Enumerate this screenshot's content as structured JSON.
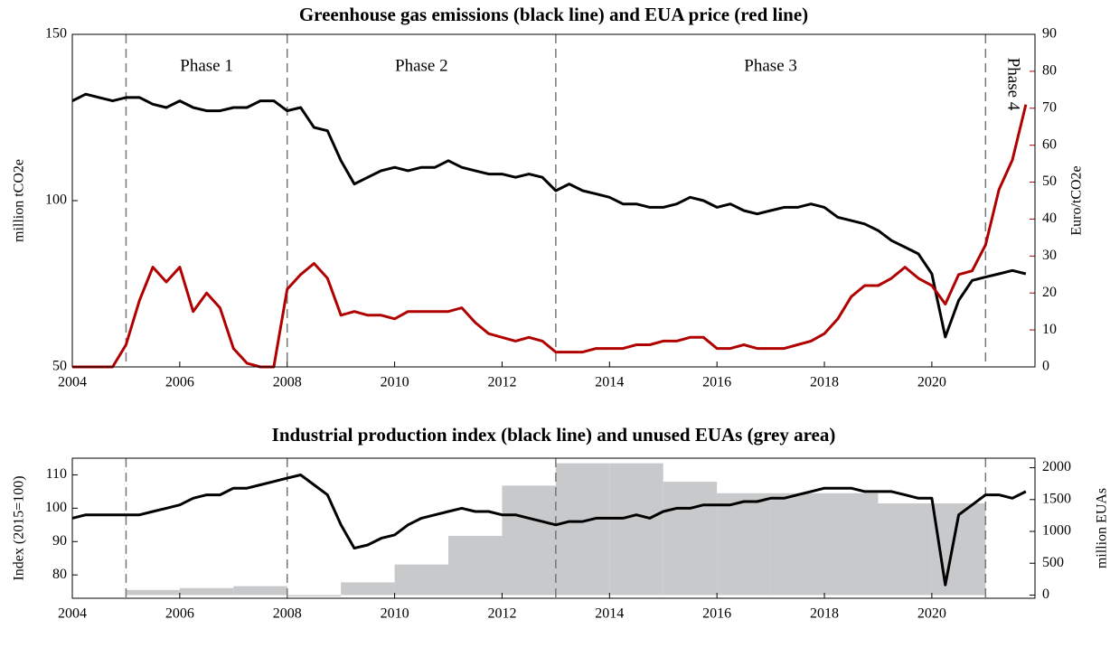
{
  "chart_data": [
    {
      "type": "line",
      "title": "Greenhouse gas emissions (black line) and EUA price (red line)",
      "ylabel": "million tCO2e",
      "y2label": "Euro/tCO2e",
      "xlim": [
        2004,
        2021.92
      ],
      "xticks": [
        2004,
        2006,
        2008,
        2010,
        2012,
        2014,
        2016,
        2018,
        2020
      ],
      "ylim": [
        50,
        150
      ],
      "yticks": [
        50,
        100,
        150
      ],
      "y2lim": [
        0,
        90
      ],
      "y2ticks": [
        0,
        10,
        20,
        30,
        40,
        50,
        60,
        70,
        80,
        90
      ],
      "phase_lines": [
        2005,
        2008,
        2013,
        2021
      ],
      "annotations": [
        {
          "text": "Phase 1",
          "x": 2006.5
        },
        {
          "text": "Phase 2",
          "x": 2010.5
        },
        {
          "text": "Phase 3",
          "x": 2017
        },
        {
          "text": "Phase 4",
          "x": 2021.5,
          "rotate": 90
        }
      ],
      "x": [
        2004,
        2004.25,
        2004.5,
        2004.75,
        2005,
        2005.25,
        2005.5,
        2005.75,
        2006,
        2006.25,
        2006.5,
        2006.75,
        2007,
        2007.25,
        2007.5,
        2007.75,
        2008,
        2008.25,
        2008.5,
        2008.75,
        2009,
        2009.25,
        2009.5,
        2009.75,
        2010,
        2010.25,
        2010.5,
        2010.75,
        2011,
        2011.25,
        2011.5,
        2011.75,
        2012,
        2012.25,
        2012.5,
        2012.75,
        2013,
        2013.25,
        2013.5,
        2013.75,
        2014,
        2014.25,
        2014.5,
        2014.75,
        2015,
        2015.25,
        2015.5,
        2015.75,
        2016,
        2016.25,
        2016.5,
        2016.75,
        2017,
        2017.25,
        2017.5,
        2017.75,
        2018,
        2018.25,
        2018.5,
        2018.75,
        2019,
        2019.25,
        2019.5,
        2019.75,
        2020,
        2020.25,
        2020.5,
        2020.75,
        2021,
        2021.25,
        2021.5,
        2021.75
      ],
      "series": [
        {
          "color": "#000000",
          "axis": "y",
          "values": [
            130,
            132,
            131,
            130,
            131,
            131,
            129,
            128,
            130,
            128,
            127,
            127,
            128,
            128,
            130,
            130,
            127,
            128,
            122,
            121,
            112,
            105,
            107,
            109,
            110,
            109,
            110,
            110,
            112,
            110,
            109,
            108,
            108,
            107,
            108,
            107,
            103,
            105,
            103,
            102,
            101,
            99,
            99,
            98,
            98,
            99,
            101,
            100,
            98,
            99,
            97,
            96,
            97,
            98,
            98,
            99,
            98,
            95,
            94,
            93,
            91,
            88,
            86,
            84,
            78,
            59,
            70,
            76,
            77,
            78,
            79,
            78
          ]
        },
        {
          "color": "#b00000",
          "axis": "y2",
          "values": [
            0,
            0,
            0,
            0,
            6,
            18,
            27,
            23,
            27,
            15,
            20,
            16,
            5,
            1,
            0,
            0,
            21,
            25,
            28,
            24,
            14,
            15,
            14,
            14,
            13,
            15,
            15,
            15,
            15,
            16,
            12,
            9,
            8,
            7,
            8,
            7,
            4,
            4,
            4,
            5,
            5,
            5,
            6,
            6,
            7,
            7,
            8,
            8,
            5,
            5,
            6,
            5,
            5,
            5,
            6,
            7,
            9,
            13,
            19,
            22,
            22,
            24,
            27,
            24,
            22,
            17,
            25,
            26,
            33,
            48,
            56,
            71
          ]
        }
      ]
    },
    {
      "type": "line",
      "title": "Industrial production index (black line) and unused EUAs (grey area)",
      "ylabel": "Index (2015=100)",
      "y2label": "million EUAs",
      "xlim": [
        2004,
        2021.92
      ],
      "xticks": [
        2004,
        2006,
        2008,
        2010,
        2012,
        2014,
        2016,
        2018,
        2020
      ],
      "ylim": [
        73,
        115
      ],
      "yticks": [
        80,
        90,
        100,
        110
      ],
      "y2lim": [
        -50,
        2150
      ],
      "y2ticks": [
        0,
        500,
        1000,
        1500,
        2000
      ],
      "phase_lines": [
        2005,
        2008,
        2013,
        2021
      ],
      "area": {
        "color": "#c8c9cb",
        "axis": "y2",
        "bins": [
          2005,
          2006,
          2007,
          2008,
          2009,
          2010,
          2011,
          2012,
          2013,
          2014,
          2015,
          2016,
          2017,
          2018,
          2019,
          2020,
          2021
        ],
        "values": [
          80,
          110,
          140,
          -20,
          200,
          480,
          930,
          1720,
          2070,
          2070,
          1780,
          1600,
          1600,
          1600,
          1440,
          1440
        ]
      },
      "x": [
        2004,
        2004.25,
        2004.5,
        2004.75,
        2005,
        2005.25,
        2005.5,
        2005.75,
        2006,
        2006.25,
        2006.5,
        2006.75,
        2007,
        2007.25,
        2007.5,
        2007.75,
        2008,
        2008.25,
        2008.5,
        2008.75,
        2009,
        2009.25,
        2009.5,
        2009.75,
        2010,
        2010.25,
        2010.5,
        2010.75,
        2011,
        2011.25,
        2011.5,
        2011.75,
        2012,
        2012.25,
        2012.5,
        2012.75,
        2013,
        2013.25,
        2013.5,
        2013.75,
        2014,
        2014.25,
        2014.5,
        2014.75,
        2015,
        2015.25,
        2015.5,
        2015.75,
        2016,
        2016.25,
        2016.5,
        2016.75,
        2017,
        2017.25,
        2017.5,
        2017.75,
        2018,
        2018.25,
        2018.5,
        2018.75,
        2019,
        2019.25,
        2019.5,
        2019.75,
        2020,
        2020.25,
        2020.5,
        2020.75,
        2021,
        2021.25,
        2021.5,
        2021.75
      ],
      "series": [
        {
          "color": "#000000",
          "axis": "y",
          "values": [
            97,
            98,
            98,
            98,
            98,
            98,
            99,
            100,
            101,
            103,
            104,
            104,
            106,
            106,
            107,
            108,
            109,
            110,
            107,
            104,
            95,
            88,
            89,
            91,
            92,
            95,
            97,
            98,
            99,
            100,
            99,
            99,
            98,
            98,
            97,
            96,
            95,
            96,
            96,
            97,
            97,
            97,
            98,
            97,
            99,
            100,
            100,
            101,
            101,
            101,
            102,
            102,
            103,
            103,
            104,
            105,
            106,
            106,
            106,
            105,
            105,
            105,
            104,
            103,
            103,
            77,
            98,
            101,
            104,
            104,
            103,
            105
          ]
        }
      ]
    }
  ]
}
